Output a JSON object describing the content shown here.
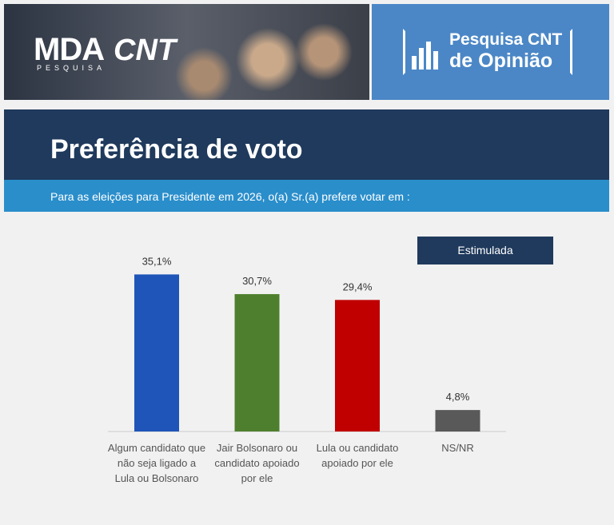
{
  "header": {
    "brand": "MDA",
    "brand_sub": "PESQUISA",
    "partner": "CNT",
    "survey_line1": "Pesquisa CNT",
    "survey_line2": "de Opinião"
  },
  "title": "Preferência de voto",
  "subtitle": "Para as eleições para Presidente em 2026, o(a) Sr.(a) prefere votar em :",
  "badge": "Estimulada",
  "chart_data": {
    "type": "bar",
    "categories": [
      "Algum candidato que não seja ligado a Lula ou Bolsonaro",
      "Jair Bolsonaro ou candidato apoiado por ele",
      "Lula ou candidato apoiado por ele",
      "NS/NR"
    ],
    "values": [
      35.1,
      30.7,
      29.4,
      4.8
    ],
    "value_labels": [
      "35,1%",
      "30,7%",
      "29,4%",
      "4,8%"
    ],
    "colors": [
      "#1f55b8",
      "#4e7f2e",
      "#c00000",
      "#595959"
    ]
  }
}
